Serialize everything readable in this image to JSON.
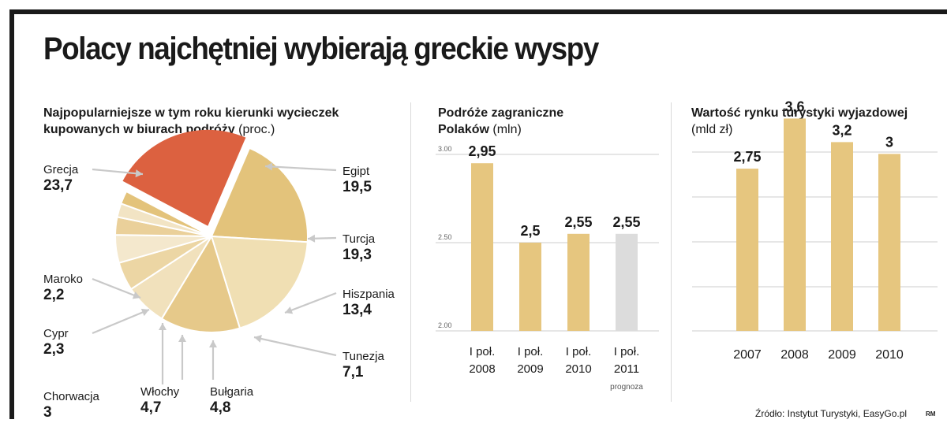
{
  "title": "Polacy najchętniej wybierają greckie wyspy",
  "source": "Źródło: Instytut Turystyki, EasyGo.pl",
  "credit": "RM",
  "colors": {
    "highlight": "#dc6140",
    "slices": [
      "#e3c37b",
      "#f0dfb3",
      "#e6c98a",
      "#f1e1bc",
      "#ecd6a4",
      "#f4e8cd",
      "#ead09a",
      "#f2e4c4"
    ],
    "bar": "#e6c67f",
    "bar_forecast": "#dcdcdc",
    "grid": "#cccccc"
  },
  "chart_data": [
    {
      "type": "pie",
      "title": "Najpopularniejsze w tym roku kierunki wycieczek kupowanych w biurach podróży",
      "title_lines": [
        "Najpopularniejsze w tym roku kierunki wycieczek",
        "kupowanych w biurach podróży"
      ],
      "unit": "(proc.)",
      "slices": [
        {
          "label": "Egipt",
          "value": 19.5,
          "value_text": "19,5"
        },
        {
          "label": "Turcja",
          "value": 19.3,
          "value_text": "19,3"
        },
        {
          "label": "Hiszpania",
          "value": 13.4,
          "value_text": "13,4"
        },
        {
          "label": "Tunezja",
          "value": 7.1,
          "value_text": "7,1"
        },
        {
          "label": "Bułgaria",
          "value": 4.8,
          "value_text": "4,8"
        },
        {
          "label": "Włochy",
          "value": 4.7,
          "value_text": "4,7"
        },
        {
          "label": "Chorwacja",
          "value": 3,
          "value_text": "3"
        },
        {
          "label": "Cypr",
          "value": 2.3,
          "value_text": "2,3"
        },
        {
          "label": "Maroko",
          "value": 2.2,
          "value_text": "2,2"
        },
        {
          "label": "Grecja",
          "value": 23.7,
          "value_text": "23,7",
          "highlighted": true
        }
      ]
    },
    {
      "type": "bar",
      "title_lines": [
        "Podróże zagraniczne",
        "Polaków"
      ],
      "unit": "(mln)",
      "categories": [
        [
          "I poł.",
          "2008"
        ],
        [
          "I poł.",
          "2009"
        ],
        [
          "I poł.",
          "2010"
        ],
        [
          "I poł.",
          "2011"
        ]
      ],
      "values": [
        2.95,
        2.5,
        2.55,
        2.55
      ],
      "value_labels": [
        "2,95",
        "2,5",
        "2,55",
        "2,55"
      ],
      "forecast_index": 3,
      "forecast_label": "prognoza",
      "ylim": [
        2.0,
        3.0
      ],
      "yticks": [
        2.0,
        2.5,
        3.0
      ],
      "ytick_labels": [
        "2.00",
        "2.50",
        "3.00"
      ],
      "grid": true
    },
    {
      "type": "bar",
      "title_lines": [
        "Wartość rynku turystyki wyjazdowej"
      ],
      "unit": "(mld zł)",
      "categories": [
        "2007",
        "2008",
        "2009",
        "2010"
      ],
      "values": [
        2.75,
        3.6,
        3.2,
        3
      ],
      "value_labels": [
        "2,75",
        "3,6",
        "3,2",
        "3"
      ],
      "grid": true
    }
  ]
}
